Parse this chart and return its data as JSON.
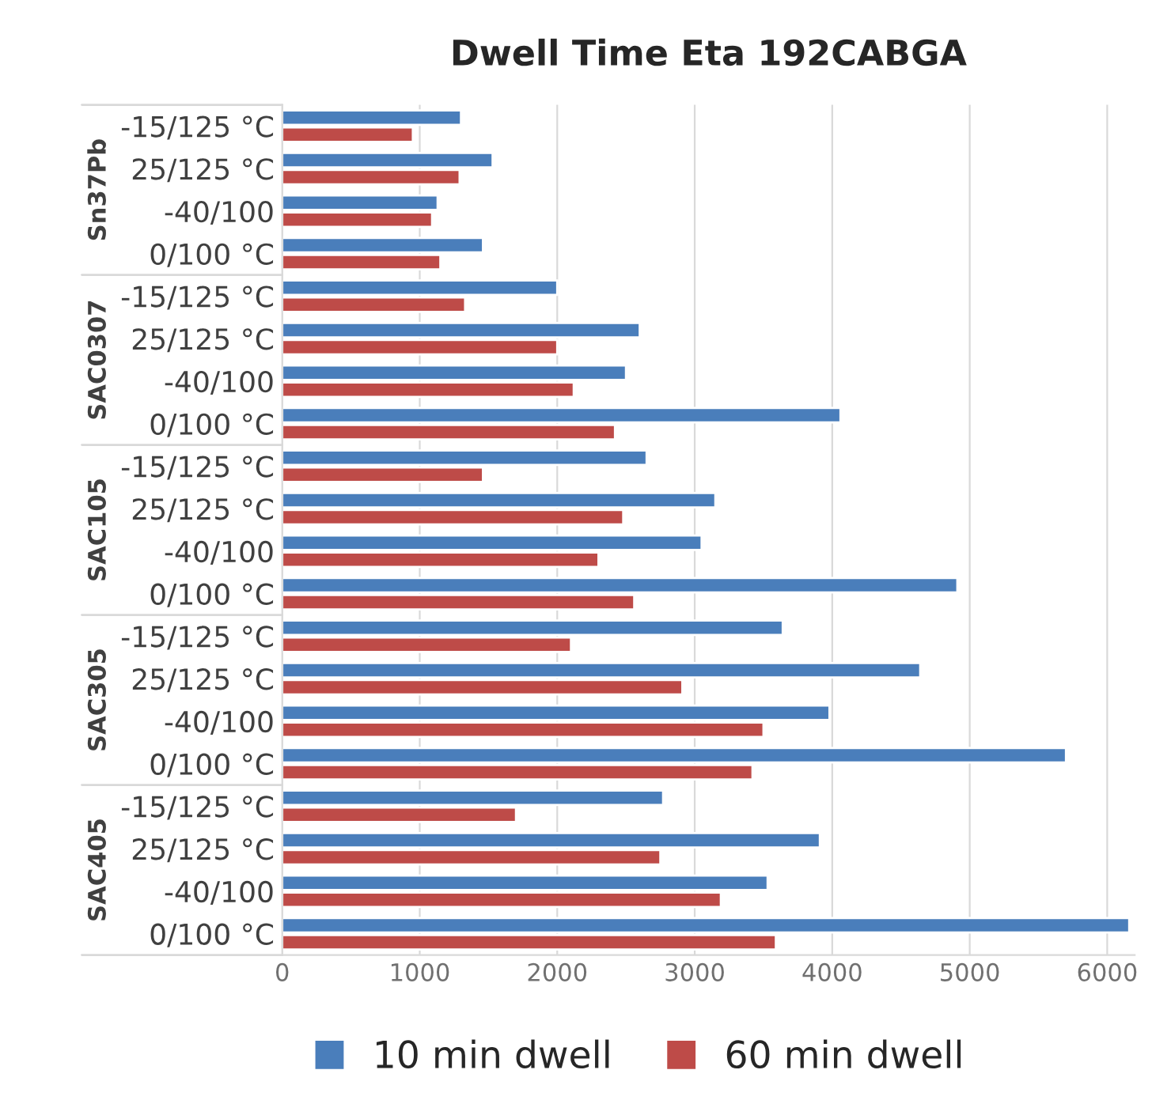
{
  "chart_data": {
    "type": "bar",
    "orientation": "horizontal",
    "title": "Dwell Time Eta 192CABGA",
    "categories": [
      "-15/125 °C",
      "25/125 °C",
      "-40/100",
      "0/100 °C",
      "-15/125 °C",
      "25/125 °C",
      "-40/100",
      "0/100 °C",
      "-15/125 °C",
      "25/125 °C",
      "-40/100",
      "0/100 °C",
      "-15/125 °C",
      "25/125 °C",
      "-40/100",
      "0/100 °C",
      "-15/125 °C",
      "25/125 °C",
      "-40/100",
      "0/100 °C"
    ],
    "annotations": [
      "Sn37Pb",
      "SAC0307",
      "SAC105",
      "SAC305",
      "SAC405"
    ],
    "series": [
      {
        "name": "10 min dwell",
        "color": "#4a7ebb",
        "values": [
          1300,
          1530,
          1130,
          1460,
          2000,
          2600,
          2500,
          4060,
          2650,
          3150,
          3050,
          4910,
          3640,
          4640,
          3980,
          5700,
          2770,
          3910,
          3530,
          6160
        ]
      },
      {
        "name": "60 min dwell",
        "color": "#be4b48",
        "values": [
          950,
          1290,
          1090,
          1150,
          1330,
          2000,
          2120,
          2420,
          1460,
          2480,
          2300,
          2560,
          2100,
          2910,
          3500,
          3420,
          1700,
          2750,
          3190,
          3590
        ]
      }
    ],
    "xlim": [
      0,
      6200
    ],
    "xticks": [
      0,
      1000,
      2000,
      3000,
      4000,
      5000,
      6000
    ],
    "grid": "x",
    "legend": "bottom"
  }
}
